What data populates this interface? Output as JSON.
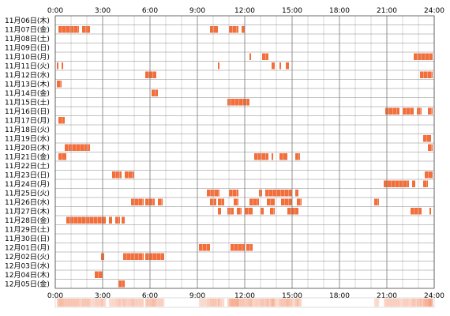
{
  "chart_data": {
    "type": "heatmap",
    "title": "",
    "xlabel": "",
    "ylabel": "",
    "xlim": [
      0,
      24
    ],
    "grid": true,
    "bar_color": "#f26f3c",
    "bar_color_light": "#f7a488",
    "summary_color": "#f5a080",
    "tick_labels": [
      "0:00",
      "3:00",
      "6:00",
      "9:00",
      "12:00",
      "15:00",
      "18:00",
      "21:00",
      "24:00"
    ],
    "rows": [
      {
        "label": "11月06日(木)",
        "segments": []
      },
      {
        "label": "11月07日(金)",
        "segments": [
          [
            0.2,
            1.5
          ],
          [
            1.7,
            2.2
          ],
          [
            9.8,
            10.3
          ],
          [
            11.0,
            11.6
          ],
          [
            11.8,
            12.0
          ]
        ]
      },
      {
        "label": "11月08日(土)",
        "segments": []
      },
      {
        "label": "11月09日(日)",
        "segments": []
      },
      {
        "label": "11月10日(月)",
        "segments": [
          [
            12.3,
            12.4
          ],
          [
            13.1,
            13.5
          ],
          [
            22.7,
            23.9
          ]
        ]
      },
      {
        "label": "11月11日(火)",
        "segments": [
          [
            0.1,
            0.2
          ],
          [
            0.4,
            0.5
          ],
          [
            10.3,
            10.4
          ],
          [
            13.7,
            13.9
          ],
          [
            14.2,
            14.3
          ],
          [
            14.6,
            14.8
          ]
        ]
      },
      {
        "label": "11月12日(水)",
        "segments": [
          [
            5.7,
            6.4
          ],
          [
            23.1,
            23.9
          ]
        ]
      },
      {
        "label": "11月13日(木)",
        "segments": [
          [
            0.1,
            0.4
          ]
        ]
      },
      {
        "label": "11月14日(金)",
        "segments": [
          [
            6.1,
            6.5
          ]
        ]
      },
      {
        "label": "11月15日(土)",
        "segments": [
          [
            10.9,
            12.3
          ]
        ]
      },
      {
        "label": "11月16日(日)",
        "segments": [
          [
            20.9,
            21.8
          ],
          [
            22.0,
            22.7
          ],
          [
            22.9,
            23.2
          ],
          [
            23.6,
            23.9
          ]
        ]
      },
      {
        "label": "11月17日(月)",
        "segments": [
          [
            0.2,
            0.6
          ]
        ]
      },
      {
        "label": "11月18日(火)",
        "segments": []
      },
      {
        "label": "11月19日(水)",
        "segments": [
          [
            23.3,
            23.8
          ]
        ]
      },
      {
        "label": "11月20日(木)",
        "segments": [
          [
            0.6,
            2.2
          ],
          [
            23.6,
            23.9
          ]
        ]
      },
      {
        "label": "11月21日(金)",
        "segments": [
          [
            0.2,
            0.7
          ],
          [
            12.6,
            13.5
          ],
          [
            13.7,
            13.8
          ],
          [
            14.2,
            14.7
          ],
          [
            15.2,
            15.5
          ]
        ]
      },
      {
        "label": "11月22日(土)",
        "segments": []
      },
      {
        "label": "11月23日(日)",
        "segments": [
          [
            3.6,
            4.2
          ],
          [
            4.4,
            5.0
          ],
          [
            23.4,
            23.9
          ]
        ]
      },
      {
        "label": "11月24日(月)",
        "segments": [
          [
            20.8,
            22.4
          ],
          [
            22.6,
            22.8
          ],
          [
            23.3,
            23.6
          ]
        ]
      },
      {
        "label": "11月25日(火)",
        "segments": [
          [
            9.6,
            10.4
          ],
          [
            11.0,
            11.6
          ],
          [
            12.9,
            13.1
          ],
          [
            13.3,
            15.0
          ],
          [
            15.2,
            15.4
          ]
        ]
      },
      {
        "label": "11月26日(水)",
        "segments": [
          [
            4.8,
            5.6
          ],
          [
            5.7,
            6.3
          ],
          [
            6.5,
            6.8
          ],
          [
            9.8,
            10.2
          ],
          [
            10.3,
            10.7
          ],
          [
            11.3,
            11.6
          ],
          [
            12.3,
            12.9
          ],
          [
            13.4,
            13.9
          ],
          [
            14.3,
            15.0
          ],
          [
            15.3,
            15.6
          ],
          [
            20.2,
            20.5
          ]
        ]
      },
      {
        "label": "11月27日(木)",
        "segments": [
          [
            10.3,
            10.5
          ],
          [
            10.9,
            11.3
          ],
          [
            11.5,
            11.8
          ],
          [
            12.0,
            12.5
          ],
          [
            13.0,
            13.2
          ],
          [
            13.6,
            13.9
          ],
          [
            14.7,
            15.4
          ],
          [
            22.5,
            23.2
          ],
          [
            23.7,
            23.8
          ]
        ]
      },
      {
        "label": "11月28日(金)",
        "segments": [
          [
            0.7,
            3.2
          ],
          [
            3.4,
            3.6
          ],
          [
            3.8,
            4.1
          ],
          [
            4.2,
            4.4
          ]
        ]
      },
      {
        "label": "11月29日(土)",
        "segments": []
      },
      {
        "label": "11月30日(日)",
        "segments": []
      },
      {
        "label": "12月01日(月)",
        "segments": [
          [
            9.1,
            9.8
          ],
          [
            11.1,
            12.0
          ],
          [
            12.1,
            12.5
          ]
        ]
      },
      {
        "label": "12月02日(火)",
        "segments": [
          [
            2.9,
            3.1
          ],
          [
            4.3,
            5.6
          ],
          [
            5.7,
            6.9
          ]
        ]
      },
      {
        "label": "12月03日(水)",
        "segments": []
      },
      {
        "label": "12月04日(木)",
        "segments": [
          [
            2.5,
            3.0
          ]
        ]
      },
      {
        "label": "12月05日(金)",
        "segments": [
          [
            4.0,
            4.4
          ]
        ]
      }
    ]
  }
}
